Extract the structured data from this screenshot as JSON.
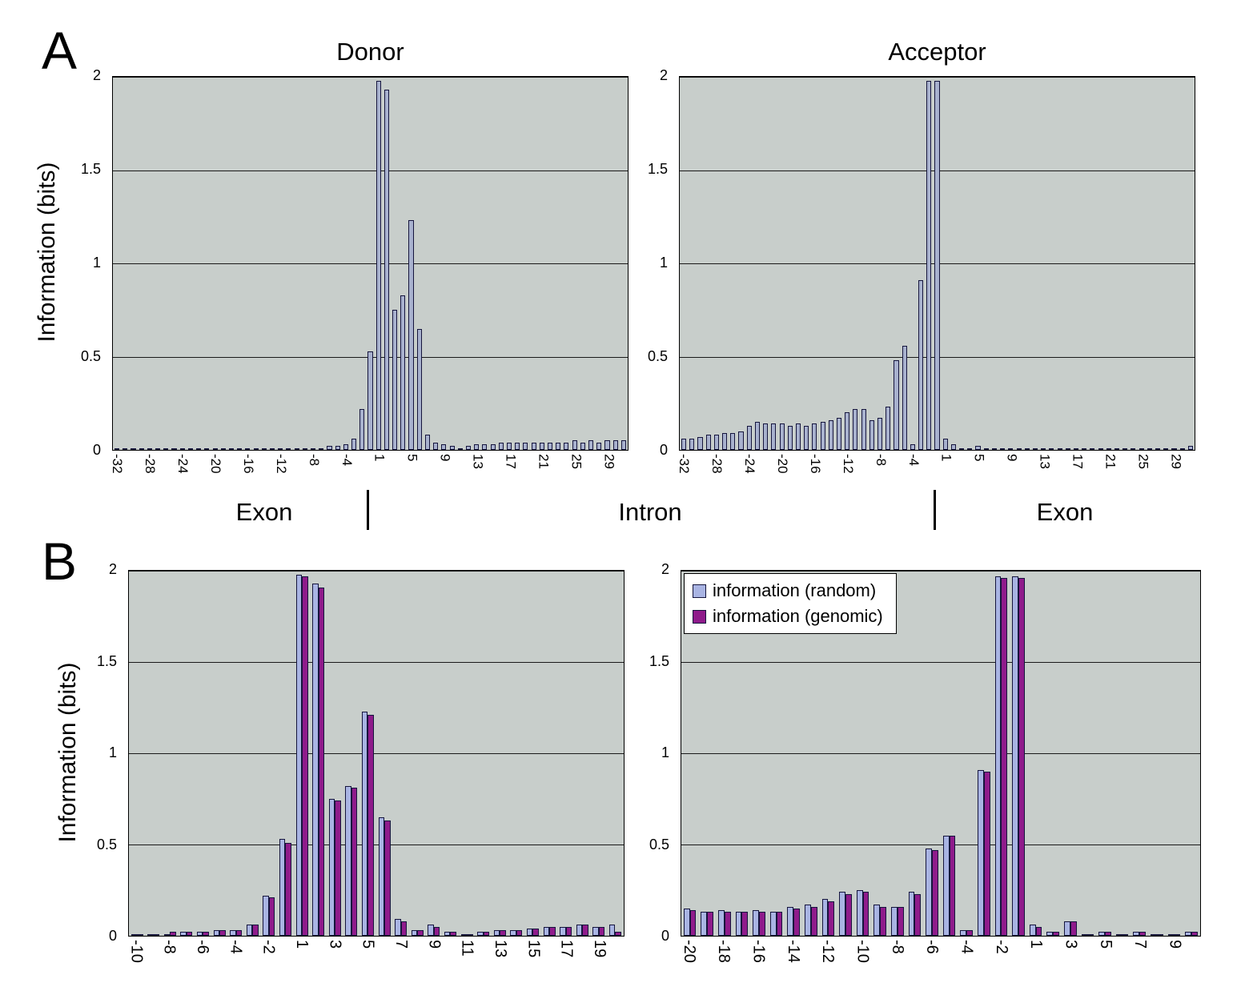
{
  "figure": {
    "panel_a_label": "A",
    "panel_b_label": "B",
    "y_axis_title": "Information (bits)",
    "region_labels": {
      "exon_left": "Exon",
      "intron": "Intron",
      "exon_right": "Exon"
    }
  },
  "style": {
    "plot_bg": "#c8cecb",
    "bar_border": "#15153d",
    "panel_a_bar_fill": "#a8b1ce",
    "random_fill": "#a9b4e3",
    "genomic_fill": "#8f1b8b"
  },
  "legend": {
    "items": [
      {
        "label": "information (random)",
        "color": "#a9b4e3"
      },
      {
        "label": "information (genomic)",
        "color": "#8f1b8b"
      }
    ]
  },
  "chart_data": [
    {
      "type": "bar",
      "name": "donor",
      "title": "Donor",
      "ylabel": "Information (bits)",
      "ylim": [
        0,
        2
      ],
      "yticks": [
        0,
        0.5,
        1,
        1.5,
        2
      ],
      "label_every": 4,
      "categories": [
        -32,
        -31,
        -30,
        -29,
        -28,
        -27,
        -26,
        -25,
        -24,
        -23,
        -22,
        -21,
        -20,
        -19,
        -18,
        -17,
        -16,
        -15,
        -14,
        -13,
        -12,
        -11,
        -10,
        -9,
        -8,
        -7,
        -6,
        -5,
        -4,
        -3,
        -2,
        -1,
        1,
        2,
        3,
        4,
        5,
        6,
        7,
        8,
        9,
        10,
        11,
        12,
        13,
        14,
        15,
        16,
        17,
        18,
        19,
        20,
        21,
        22,
        23,
        24,
        25,
        26,
        27,
        28,
        29,
        30,
        31
      ],
      "series": [
        {
          "name": "information",
          "color": "#a8b1ce",
          "values": [
            0.01,
            0.01,
            0.01,
            0.01,
            0.01,
            0.01,
            0.01,
            0.01,
            0.01,
            0.01,
            0.01,
            0.01,
            0.01,
            0.01,
            0.01,
            0.01,
            0.01,
            0.01,
            0.01,
            0.01,
            0.01,
            0.01,
            0.01,
            0.01,
            0.01,
            0.01,
            0.02,
            0.02,
            0.03,
            0.06,
            0.22,
            0.53,
            1.98,
            1.93,
            0.75,
            0.83,
            1.23,
            0.65,
            0.08,
            0.04,
            0.03,
            0.02,
            0.01,
            0.02,
            0.03,
            0.03,
            0.03,
            0.04,
            0.04,
            0.04,
            0.04,
            0.04,
            0.04,
            0.04,
            0.04,
            0.04,
            0.05,
            0.04,
            0.05,
            0.04,
            0.05,
            0.05,
            0.05
          ]
        }
      ]
    },
    {
      "type": "bar",
      "name": "acceptor",
      "title": "Acceptor",
      "ylabel": "Information (bits)",
      "ylim": [
        0,
        2
      ],
      "yticks": [
        0,
        0.5,
        1,
        1.5,
        2
      ],
      "label_every": 4,
      "categories": [
        -32,
        -31,
        -30,
        -29,
        -28,
        -27,
        -26,
        -25,
        -24,
        -23,
        -22,
        -21,
        -20,
        -19,
        -18,
        -17,
        -16,
        -15,
        -14,
        -13,
        -12,
        -11,
        -10,
        -9,
        -8,
        -7,
        -6,
        -5,
        -4,
        -3,
        -2,
        -1,
        1,
        2,
        3,
        4,
        5,
        6,
        7,
        8,
        9,
        10,
        11,
        12,
        13,
        14,
        15,
        16,
        17,
        18,
        19,
        20,
        21,
        22,
        23,
        24,
        25,
        26,
        27,
        28,
        29,
        30,
        31
      ],
      "series": [
        {
          "name": "information",
          "color": "#a8b1ce",
          "values": [
            0.06,
            0.06,
            0.07,
            0.08,
            0.08,
            0.09,
            0.09,
            0.1,
            0.13,
            0.15,
            0.14,
            0.14,
            0.14,
            0.13,
            0.14,
            0.13,
            0.14,
            0.15,
            0.16,
            0.17,
            0.2,
            0.22,
            0.22,
            0.16,
            0.17,
            0.23,
            0.48,
            0.56,
            0.03,
            0.91,
            1.98,
            1.98,
            0.06,
            0.03,
            0.01,
            0.01,
            0.02,
            0.01,
            0.01,
            0.01,
            0.01,
            0.01,
            0.01,
            0.01,
            0.01,
            0.01,
            0.01,
            0.01,
            0.01,
            0.01,
            0.01,
            0.01,
            0.01,
            0.01,
            0.01,
            0.01,
            0.01,
            0.01,
            0.01,
            0.01,
            0.01,
            0.01,
            0.02
          ]
        }
      ]
    },
    {
      "type": "bar",
      "name": "donor-comparison",
      "ylabel": "Information (bits)",
      "ylim": [
        0,
        2
      ],
      "yticks": [
        0,
        0.5,
        1,
        1.5,
        2
      ],
      "label_every": 2,
      "categories": [
        -10,
        -9,
        -8,
        -7,
        -6,
        -5,
        -4,
        -3,
        -2,
        -1,
        1,
        2,
        3,
        4,
        5,
        6,
        7,
        8,
        9,
        10,
        11,
        12,
        13,
        14,
        15,
        16,
        17,
        18,
        19,
        20
      ],
      "series": [
        {
          "name": "information (random)",
          "color": "#a9b4e3",
          "values": [
            0.01,
            0.01,
            0.01,
            0.02,
            0.02,
            0.03,
            0.03,
            0.06,
            0.22,
            0.53,
            1.98,
            1.93,
            0.75,
            0.82,
            1.23,
            0.65,
            0.09,
            0.03,
            0.06,
            0.02,
            0.01,
            0.02,
            0.03,
            0.03,
            0.04,
            0.05,
            0.05,
            0.06,
            0.05,
            0.06
          ]
        },
        {
          "name": "information (genomic)",
          "color": "#8f1b8b",
          "values": [
            0.01,
            0.01,
            0.02,
            0.02,
            0.02,
            0.03,
            0.03,
            0.06,
            0.21,
            0.51,
            1.97,
            1.91,
            0.74,
            0.81,
            1.21,
            0.63,
            0.08,
            0.03,
            0.05,
            0.02,
            0.01,
            0.02,
            0.03,
            0.03,
            0.04,
            0.05,
            0.05,
            0.06,
            0.05,
            0.02
          ]
        }
      ]
    },
    {
      "type": "bar",
      "name": "acceptor-comparison",
      "ylabel": "Information (bits)",
      "ylim": [
        0,
        2
      ],
      "yticks": [
        0,
        0.5,
        1,
        1.5,
        2
      ],
      "label_every": 2,
      "categories": [
        -20,
        -19,
        -18,
        -17,
        -16,
        -15,
        -14,
        -13,
        -12,
        -11,
        -10,
        -9,
        -8,
        -7,
        -6,
        -5,
        -4,
        -3,
        -2,
        -1,
        1,
        2,
        3,
        4,
        5,
        6,
        7,
        8,
        9,
        10
      ],
      "series": [
        {
          "name": "information (random)",
          "color": "#a9b4e3",
          "values": [
            0.15,
            0.13,
            0.14,
            0.13,
            0.14,
            0.13,
            0.16,
            0.17,
            0.2,
            0.24,
            0.25,
            0.17,
            0.16,
            0.24,
            0.48,
            0.55,
            0.03,
            0.91,
            1.97,
            1.97,
            0.06,
            0.02,
            0.08,
            0.01,
            0.02,
            0.01,
            0.02,
            0.01,
            0.01,
            0.02
          ]
        },
        {
          "name": "information (genomic)",
          "color": "#8f1b8b",
          "values": [
            0.14,
            0.13,
            0.13,
            0.13,
            0.13,
            0.13,
            0.15,
            0.16,
            0.19,
            0.23,
            0.24,
            0.16,
            0.16,
            0.23,
            0.47,
            0.55,
            0.03,
            0.9,
            1.96,
            1.96,
            0.05,
            0.02,
            0.08,
            0.01,
            0.02,
            0.01,
            0.02,
            0.01,
            0.01,
            0.02
          ]
        }
      ]
    }
  ]
}
